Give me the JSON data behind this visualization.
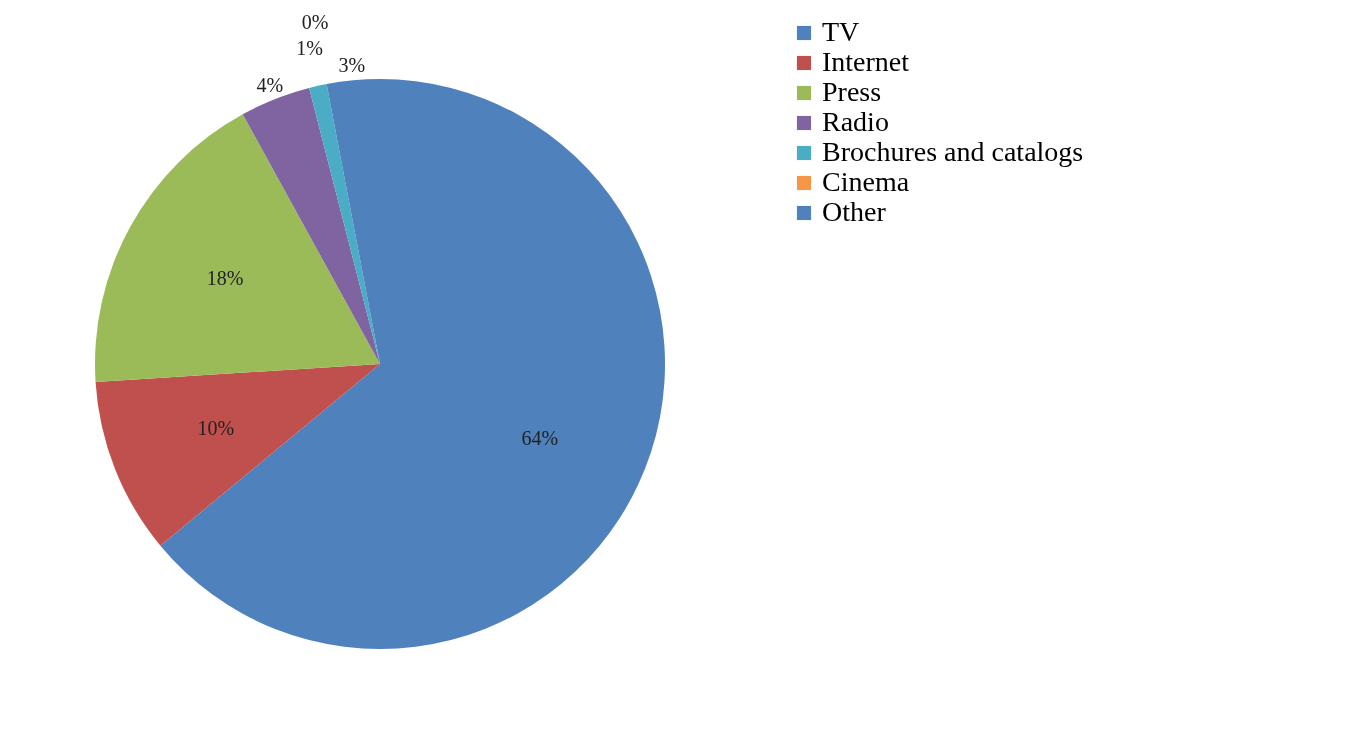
{
  "chart_data": {
    "type": "pie",
    "categories": [
      "TV",
      "Internet",
      "Press",
      "Radio",
      "Brochures and catalogs",
      "Cinema",
      "Other"
    ],
    "values": [
      64,
      10,
      18,
      4,
      1,
      0,
      3
    ],
    "colors": [
      "#4f81bd",
      "#c0504d",
      "#9bbb59",
      "#8064a2",
      "#4bacc6",
      "#f79646",
      "#4f81bd"
    ],
    "value_labels": [
      "64%",
      "10%",
      "18%",
      "4%",
      "1%",
      "0%",
      "3%"
    ],
    "legend": "right"
  }
}
